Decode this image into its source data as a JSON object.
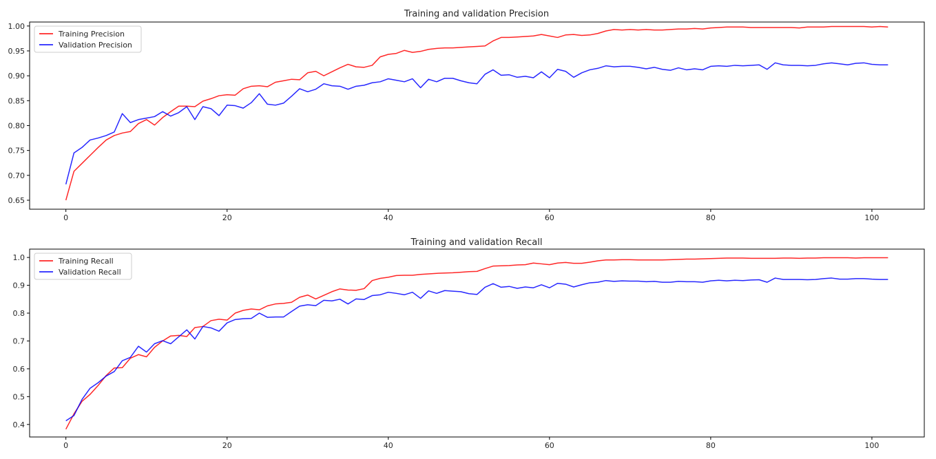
{
  "chart_data": [
    {
      "type": "line",
      "title": "Training and validation Precision",
      "xlabel": "",
      "ylabel": "",
      "xlim": [
        -4.5,
        106.5
      ],
      "ylim": [
        0.632,
        1.008
      ],
      "xticks": [
        0,
        20,
        40,
        60,
        80,
        100
      ],
      "yticks": [
        0.65,
        0.7,
        0.75,
        0.8,
        0.85,
        0.9,
        0.95,
        1.0
      ],
      "ytick_labels": [
        "0.65",
        "0.70",
        "0.75",
        "0.80",
        "0.85",
        "0.90",
        "0.95",
        "1.00"
      ],
      "grid": false,
      "legend": "top-left",
      "series": [
        {
          "name": "Training Precision",
          "color": "#ff0000",
          "values": [
            0.65,
            0.708,
            0.724,
            0.74,
            0.756,
            0.771,
            0.78,
            0.785,
            0.788,
            0.804,
            0.812,
            0.801,
            0.816,
            0.828,
            0.839,
            0.839,
            0.838,
            0.849,
            0.854,
            0.86,
            0.862,
            0.861,
            0.874,
            0.879,
            0.88,
            0.878,
            0.887,
            0.89,
            0.893,
            0.892,
            0.906,
            0.909,
            0.9,
            0.908,
            0.916,
            0.923,
            0.918,
            0.917,
            0.921,
            0.938,
            0.943,
            0.945,
            0.951,
            0.947,
            0.949,
            0.953,
            0.955,
            0.956,
            0.956,
            0.957,
            0.958,
            0.959,
            0.96,
            0.97,
            0.977,
            0.977,
            0.978,
            0.979,
            0.98,
            0.983,
            0.98,
            0.977,
            0.982,
            0.983,
            0.981,
            0.982,
            0.985,
            0.99,
            0.993,
            0.992,
            0.993,
            0.992,
            0.993,
            0.992,
            0.992,
            0.993,
            0.994,
            0.994,
            0.995,
            0.994,
            0.996,
            0.997,
            0.998,
            0.998,
            0.998,
            0.997,
            0.997,
            0.997,
            0.997,
            0.997,
            0.997,
            0.996,
            0.998,
            0.998,
            0.998,
            0.999,
            0.999,
            0.999,
            0.999,
            0.999,
            0.998,
            0.999,
            0.998
          ]
        },
        {
          "name": "Validation Precision",
          "color": "#0000ff",
          "values": [
            0.682,
            0.745,
            0.756,
            0.771,
            0.775,
            0.78,
            0.787,
            0.824,
            0.806,
            0.812,
            0.815,
            0.818,
            0.828,
            0.819,
            0.826,
            0.838,
            0.812,
            0.838,
            0.834,
            0.82,
            0.841,
            0.84,
            0.835,
            0.846,
            0.864,
            0.843,
            0.841,
            0.845,
            0.859,
            0.874,
            0.868,
            0.873,
            0.884,
            0.88,
            0.879,
            0.873,
            0.879,
            0.881,
            0.886,
            0.888,
            0.894,
            0.891,
            0.888,
            0.894,
            0.876,
            0.893,
            0.888,
            0.895,
            0.895,
            0.89,
            0.886,
            0.884,
            0.903,
            0.912,
            0.901,
            0.902,
            0.897,
            0.899,
            0.896,
            0.908,
            0.896,
            0.913,
            0.909,
            0.897,
            0.906,
            0.912,
            0.915,
            0.92,
            0.918,
            0.919,
            0.919,
            0.917,
            0.914,
            0.917,
            0.913,
            0.911,
            0.916,
            0.912,
            0.914,
            0.912,
            0.919,
            0.92,
            0.919,
            0.921,
            0.92,
            0.921,
            0.922,
            0.913,
            0.926,
            0.922,
            0.921,
            0.921,
            0.92,
            0.921,
            0.924,
            0.926,
            0.924,
            0.922,
            0.925,
            0.926,
            0.923,
            0.922,
            0.922
          ]
        }
      ]
    },
    {
      "type": "line",
      "title": "Training and validation Recall",
      "xlabel": "",
      "ylabel": "",
      "xlim": [
        -4.5,
        106.5
      ],
      "ylim": [
        0.355,
        1.03
      ],
      "xticks": [
        0,
        20,
        40,
        60,
        80,
        100
      ],
      "yticks": [
        0.4,
        0.5,
        0.6,
        0.7,
        0.8,
        0.9,
        1.0
      ],
      "ytick_labels": [
        "0.4",
        "0.5",
        "0.6",
        "0.7",
        "0.8",
        "0.9",
        "1.0"
      ],
      "grid": false,
      "legend": "top-left",
      "series": [
        {
          "name": "Training Recall",
          "color": "#ff0000",
          "values": [
            0.383,
            0.438,
            0.483,
            0.508,
            0.54,
            0.576,
            0.603,
            0.604,
            0.638,
            0.651,
            0.643,
            0.677,
            0.7,
            0.718,
            0.72,
            0.716,
            0.748,
            0.752,
            0.773,
            0.778,
            0.775,
            0.8,
            0.81,
            0.815,
            0.812,
            0.826,
            0.833,
            0.835,
            0.839,
            0.857,
            0.865,
            0.851,
            0.864,
            0.877,
            0.887,
            0.883,
            0.882,
            0.888,
            0.917,
            0.925,
            0.929,
            0.935,
            0.936,
            0.936,
            0.939,
            0.941,
            0.943,
            0.944,
            0.945,
            0.947,
            0.949,
            0.95,
            0.96,
            0.969,
            0.97,
            0.971,
            0.973,
            0.974,
            0.98,
            0.977,
            0.974,
            0.98,
            0.982,
            0.979,
            0.979,
            0.983,
            0.988,
            0.991,
            0.991,
            0.992,
            0.992,
            0.991,
            0.991,
            0.991,
            0.991,
            0.992,
            0.993,
            0.994,
            0.994,
            0.995,
            0.996,
            0.997,
            0.998,
            0.998,
            0.998,
            0.997,
            0.997,
            0.997,
            0.997,
            0.998,
            0.998,
            0.997,
            0.998,
            0.998,
            0.999,
            0.999,
            0.999,
            0.999,
            0.998,
            0.999,
            0.999,
            0.999,
            0.999
          ]
        },
        {
          "name": "Validation Recall",
          "color": "#0000ff",
          "values": [
            0.413,
            0.432,
            0.49,
            0.53,
            0.55,
            0.574,
            0.59,
            0.629,
            0.641,
            0.681,
            0.66,
            0.69,
            0.701,
            0.69,
            0.715,
            0.74,
            0.707,
            0.752,
            0.747,
            0.735,
            0.765,
            0.777,
            0.78,
            0.781,
            0.8,
            0.785,
            0.786,
            0.786,
            0.806,
            0.825,
            0.83,
            0.827,
            0.846,
            0.844,
            0.85,
            0.833,
            0.851,
            0.849,
            0.863,
            0.866,
            0.875,
            0.871,
            0.866,
            0.875,
            0.853,
            0.88,
            0.871,
            0.881,
            0.879,
            0.877,
            0.87,
            0.867,
            0.893,
            0.906,
            0.893,
            0.896,
            0.889,
            0.894,
            0.891,
            0.902,
            0.891,
            0.907,
            0.904,
            0.894,
            0.902,
            0.909,
            0.911,
            0.917,
            0.914,
            0.916,
            0.915,
            0.915,
            0.913,
            0.914,
            0.911,
            0.911,
            0.914,
            0.913,
            0.913,
            0.911,
            0.916,
            0.918,
            0.916,
            0.918,
            0.917,
            0.919,
            0.92,
            0.911,
            0.926,
            0.921,
            0.921,
            0.921,
            0.92,
            0.921,
            0.924,
            0.926,
            0.922,
            0.922,
            0.924,
            0.924,
            0.922,
            0.921,
            0.921
          ]
        }
      ]
    }
  ]
}
